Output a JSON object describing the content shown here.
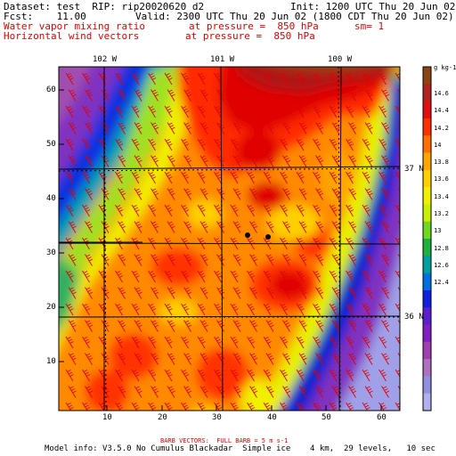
{
  "header": {
    "dataset": "Dataset: test  RIP: rip20020620 d2",
    "init": "Init: 1200 UTC Thu 20 Jun 02",
    "fcst": "Fcst:    11.00",
    "valid": "Valid: 2300 UTC Thu 20 Jun 02 (1800 CDT Thu 20 Jun 02)",
    "field1_name": "Water vapor mixing ratio",
    "field1_level": "at pressure =  850 hPa",
    "field1_sm": "sm= 1",
    "field2_name": "Horizontal wind vectors",
    "field2_level": "at pressure =  850 hPa"
  },
  "map": {
    "lon_labels": [
      "102 W",
      "101 W",
      "100 W"
    ],
    "lat_labels": [
      "37 N",
      "36 N"
    ],
    "x_ticks": [
      "10",
      "20",
      "30",
      "40",
      "50",
      "60"
    ],
    "y_ticks": [
      "10",
      "20",
      "30",
      "40",
      "50",
      "60"
    ],
    "station_dots": 2
  },
  "colorbar": {
    "unit": "g kg-1",
    "labels": [
      "14.6",
      "14.4",
      "14.2",
      "14",
      "13.8",
      "13.6",
      "13.4",
      "13.2",
      "13",
      "12.8",
      "12.6",
      "12.4"
    ],
    "colors": [
      "#8b4513",
      "#b22222",
      "#e01010",
      "#ff3000",
      "#ff7000",
      "#ffa500",
      "#ffd000",
      "#f0f000",
      "#c8f000",
      "#70d820",
      "#20b040",
      "#00a0a0",
      "#0070e0",
      "#1020e0",
      "#5a20d0",
      "#8020c0",
      "#a040b0",
      "#b070c0",
      "#9090e0",
      "#b0b0f0"
    ]
  },
  "footer": {
    "barb_note": "BARB VECTORS:  FULL BARB = 5 m s-1",
    "model_info": "Model info: V3.5.0 No Cumulus Blackadar  Simple ice    4 km,  29 levels,   10 sec"
  }
}
